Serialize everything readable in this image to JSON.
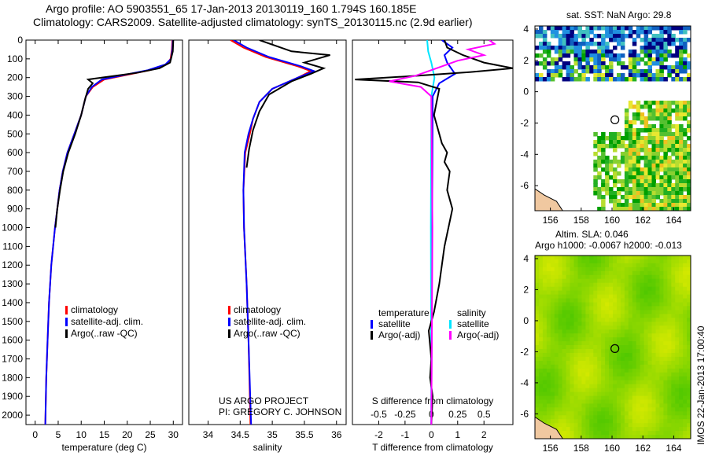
{
  "title_line1": "Argo profile: AO 5903551_65 17-Jan-2013 20130119_160 1.794S 160.185E",
  "title_line2": "Climatology: CARS2009. Satellite-adjusted climatology: synTS_20130115.nc (2.9d earlier)",
  "project_line1": "US ARGO PROJECT",
  "project_line2": "PI: GREGORY C. JOHNSON",
  "stamp": "IMOS 22-Jan-2013 17:00:40",
  "sst_title": "sat. SST: NaN Argo: 29.8",
  "sla_title1": "Altim. SLA: 0.046",
  "sla_title2": "Argo h1000: -0.0067 h2000: -0.013",
  "colors": {
    "climatology": "#ff0000",
    "satellite": "#0000ff",
    "argo": "#000000",
    "s_satellite": "#00e5ff",
    "s_argo": "#ff00ff"
  },
  "chart_data": [
    {
      "type": "line",
      "id": "temperature",
      "xlabel": "temperature (deg C)",
      "xlim": [
        -2,
        32
      ],
      "ylim": [
        0,
        2050
      ],
      "xticks": [
        0,
        5,
        10,
        15,
        20,
        25,
        30
      ],
      "yticks": [
        0,
        100,
        200,
        300,
        400,
        500,
        600,
        700,
        800,
        900,
        1000,
        1100,
        1200,
        1300,
        1400,
        1500,
        1600,
        1700,
        1800,
        1900,
        2000
      ],
      "legend": [
        "climatology",
        "satellite-adj. clim.",
        "Argo(..raw -QC)"
      ],
      "series": [
        {
          "name": "climatology",
          "color": "#ff0000",
          "points": [
            [
              29.8,
              0
            ],
            [
              29.7,
              50
            ],
            [
              29.4,
              100
            ],
            [
              28.5,
              130
            ],
            [
              25,
              160
            ],
            [
              20,
              185
            ],
            [
              15,
              210
            ],
            [
              12.5,
              250
            ],
            [
              11,
              300
            ],
            [
              10,
              400
            ],
            [
              8.5,
              500
            ],
            [
              7,
              600
            ],
            [
              6,
              700
            ],
            [
              5.3,
              800
            ],
            [
              4.8,
              900
            ],
            [
              4.3,
              1000
            ],
            [
              3.5,
              1200
            ],
            [
              3,
              1400
            ],
            [
              2.7,
              1600
            ],
            [
              2.4,
              1800
            ],
            [
              2.2,
              2050
            ]
          ]
        },
        {
          "name": "satellite-adj. clim.",
          "color": "#0000ff",
          "points": [
            [
              29.9,
              0
            ],
            [
              29.8,
              50
            ],
            [
              29.5,
              100
            ],
            [
              28.3,
              130
            ],
            [
              24.5,
              160
            ],
            [
              19.5,
              185
            ],
            [
              14.5,
              210
            ],
            [
              12.3,
              250
            ],
            [
              11,
              300
            ],
            [
              10,
              400
            ],
            [
              8.5,
              500
            ],
            [
              7,
              600
            ],
            [
              6,
              700
            ],
            [
              5.3,
              800
            ],
            [
              4.8,
              900
            ],
            [
              4.3,
              1000
            ],
            [
              3.5,
              1200
            ],
            [
              3,
              1400
            ],
            [
              2.7,
              1600
            ],
            [
              2.4,
              1800
            ],
            [
              2.2,
              2050
            ]
          ]
        },
        {
          "name": "Argo(..raw -QC)",
          "color": "#000000",
          "points": [
            [
              30,
              0
            ],
            [
              29.9,
              60
            ],
            [
              29.3,
              120
            ],
            [
              27,
              150
            ],
            [
              22,
              175
            ],
            [
              16,
              195
            ],
            [
              11.5,
              210
            ],
            [
              12.5,
              230
            ],
            [
              11.5,
              260
            ],
            [
              10.8,
              320
            ],
            [
              10,
              400
            ],
            [
              8.7,
              500
            ],
            [
              7.2,
              600
            ],
            [
              6.1,
              700
            ],
            [
              5.4,
              800
            ],
            [
              4.8,
              900
            ],
            [
              4.4,
              1000
            ]
          ]
        }
      ]
    },
    {
      "type": "line",
      "id": "salinity",
      "xlabel": "salinity",
      "xlim": [
        33.7,
        36.15
      ],
      "ylim": [
        0,
        2050
      ],
      "xticks": [
        34,
        34.5,
        35,
        35.5,
        36
      ],
      "legend": [
        "climatology",
        "satellite-adj. clim.",
        "Argo(..raw -QC)"
      ],
      "series": [
        {
          "name": "climatology",
          "color": "#ff0000",
          "points": [
            [
              34.35,
              0
            ],
            [
              34.55,
              40
            ],
            [
              34.9,
              90
            ],
            [
              35.4,
              140
            ],
            [
              35.6,
              165
            ],
            [
              35.4,
              200
            ],
            [
              35,
              260
            ],
            [
              34.8,
              330
            ],
            [
              34.7,
              420
            ],
            [
              34.65,
              500
            ],
            [
              34.58,
              600
            ],
            [
              34.55,
              800
            ],
            [
              34.56,
              1000
            ],
            [
              34.6,
              1300
            ],
            [
              34.63,
              1600
            ],
            [
              34.66,
              2050
            ]
          ]
        },
        {
          "name": "satellite-adj. clim.",
          "color": "#0000ff",
          "points": [
            [
              34.4,
              0
            ],
            [
              34.6,
              40
            ],
            [
              34.95,
              90
            ],
            [
              35.45,
              140
            ],
            [
              35.65,
              165
            ],
            [
              35.4,
              200
            ],
            [
              35,
              260
            ],
            [
              34.8,
              330
            ],
            [
              34.7,
              420
            ],
            [
              34.63,
              500
            ],
            [
              34.57,
              600
            ],
            [
              34.55,
              800
            ],
            [
              34.56,
              1000
            ],
            [
              34.6,
              1300
            ],
            [
              34.63,
              1600
            ],
            [
              34.67,
              2050
            ]
          ]
        },
        {
          "name": "Argo(..raw -QC)",
          "color": "#000000",
          "points": [
            [
              34.8,
              0
            ],
            [
              35.3,
              60
            ],
            [
              35.9,
              80
            ],
            [
              35.5,
              120
            ],
            [
              35.8,
              150
            ],
            [
              35.6,
              180
            ],
            [
              35.3,
              220
            ],
            [
              34.95,
              290
            ],
            [
              34.8,
              380
            ],
            [
              34.7,
              480
            ],
            [
              34.64,
              580
            ],
            [
              34.6,
              680
            ]
          ]
        }
      ]
    },
    {
      "type": "line",
      "id": "difference",
      "xlabel": "T difference from climatology",
      "x2label": "S difference from climatology",
      "xlim": [
        -3,
        3.1
      ],
      "x2lim": [
        -0.75,
        0.775
      ],
      "ylim": [
        0,
        2050
      ],
      "xticks": [
        -2,
        -1,
        0,
        1,
        2
      ],
      "x2ticks": [
        -0.5,
        -0.25,
        0,
        0.25,
        0.5
      ],
      "legend_t": {
        "title": "temperature",
        "items": [
          "satellite",
          "Argo(-adj)"
        ]
      },
      "legend_s": {
        "title": "salinity",
        "items": [
          "satellite",
          "Argo(-adj)"
        ]
      },
      "series": [
        {
          "name": "T satellite",
          "axis": "T",
          "color": "#0000ff",
          "points": [
            [
              0.4,
              0
            ],
            [
              0.8,
              40
            ],
            [
              0.5,
              80
            ],
            [
              0.6,
              120
            ],
            [
              0.9,
              180
            ],
            [
              0.3,
              230
            ],
            [
              0.05,
              300
            ],
            [
              0,
              2050
            ]
          ]
        },
        {
          "name": "S satellite",
          "axis": "S",
          "color": "#00e5ff",
          "points": [
            [
              -0.04,
              0
            ],
            [
              -0.03,
              60
            ],
            [
              0,
              120
            ],
            [
              0.03,
              200
            ],
            [
              0,
              300
            ],
            [
              -0.005,
              1000
            ],
            [
              0,
              2050
            ]
          ]
        },
        {
          "name": "T Argo(-adj)",
          "axis": "T",
          "color": "#000000",
          "points": [
            [
              0.5,
              0
            ],
            [
              0.6,
              40
            ],
            [
              1.2,
              80
            ],
            [
              2,
              120
            ],
            [
              3.1,
              150
            ],
            [
              1.5,
              170
            ],
            [
              -0.5,
              190
            ],
            [
              -2.9,
              210
            ],
            [
              -0.5,
              225
            ],
            [
              0.3,
              260
            ],
            [
              0.1,
              400
            ],
            [
              0.4,
              550
            ],
            [
              0.6,
              600
            ],
            [
              0.5,
              650
            ],
            [
              0.7,
              700
            ],
            [
              0.6,
              800
            ],
            [
              0.8,
              900
            ],
            [
              0.5,
              1100
            ],
            [
              0.3,
              1300
            ],
            [
              0.1,
              1450
            ],
            [
              -0.1,
              1550
            ],
            [
              0,
              1700
            ],
            [
              -0.05,
              1800
            ],
            [
              0.05,
              1900
            ],
            [
              0,
              2050
            ]
          ]
        },
        {
          "name": "S Argo(-adj)",
          "axis": "S",
          "color": "#ff00ff",
          "points": [
            [
              0.55,
              0
            ],
            [
              0.6,
              20
            ],
            [
              0.35,
              50
            ],
            [
              0.5,
              80
            ],
            [
              0.25,
              110
            ],
            [
              0.05,
              150
            ],
            [
              -0.15,
              190
            ],
            [
              -0.4,
              220
            ],
            [
              -0.1,
              250
            ],
            [
              0,
              300
            ],
            [
              0.01,
              1000
            ],
            [
              0,
              2050
            ]
          ]
        }
      ]
    },
    {
      "type": "heatmap",
      "id": "sst_map",
      "xticks": [
        156,
        158,
        160,
        162,
        164
      ],
      "yticks": [
        4,
        2,
        0,
        -2,
        -4,
        -6
      ],
      "xlim": [
        155,
        165.1
      ],
      "ylim": [
        -7.6,
        4.2
      ],
      "marker": [
        160.185,
        -1.794
      ]
    },
    {
      "type": "heatmap",
      "id": "sla_map",
      "xticks": [
        156,
        158,
        160,
        162,
        164
      ],
      "yticks": [
        4,
        2,
        0,
        -2,
        -4,
        -6
      ],
      "xlim": [
        155,
        165.1
      ],
      "ylim": [
        -7.6,
        4.2
      ],
      "marker": [
        160.185,
        -1.794
      ]
    }
  ]
}
